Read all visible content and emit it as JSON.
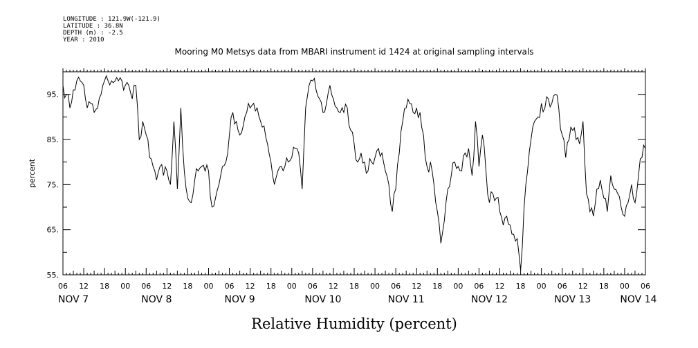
{
  "header": {
    "lines": [
      "LONGITUDE : 121.9W(-121.9)",
      "LATITUDE : 36.8N",
      "DEPTH (m) : -2.5",
      "YEAR : 2010"
    ]
  },
  "chart_data": {
    "type": "line",
    "title": "Mooring M0 Metsys data from MBARI instrument id 1424 at original sampling intervals",
    "xlabel": "Relative Humidity (percent)",
    "ylabel": "percent",
    "ylim": [
      55,
      100
    ],
    "yticks": [
      55,
      65,
      75,
      85,
      95
    ],
    "ytick_labels": [
      "55.",
      "65.",
      "75.",
      "85.",
      "95."
    ],
    "x_unit": "hours since NOV 7 00:00, 2010",
    "xlim": [
      6,
      174
    ],
    "xtick_hours": [
      6,
      12,
      18,
      24,
      30,
      36,
      42,
      48,
      54,
      60,
      66,
      72,
      78,
      84,
      90,
      96,
      102,
      108,
      114,
      120,
      126,
      132,
      138,
      144,
      150,
      156,
      162,
      168,
      174
    ],
    "xtick_labels": [
      "06",
      "12",
      "18",
      "00",
      "06",
      "12",
      "18",
      "00",
      "06",
      "12",
      "18",
      "00",
      "06",
      "12",
      "18",
      "00",
      "06",
      "12",
      "18",
      "00",
      "06",
      "12",
      "18",
      "00",
      "06",
      "12",
      "18",
      "00",
      "06"
    ],
    "day_labels": [
      {
        "text": "NOV  7",
        "hour": 9
      },
      {
        "text": "NOV  8",
        "hour": 33
      },
      {
        "text": "NOV  9",
        "hour": 57
      },
      {
        "text": "NOV 10",
        "hour": 81
      },
      {
        "text": "NOV 11",
        "hour": 105
      },
      {
        "text": "NOV 12",
        "hour": 129
      },
      {
        "text": "NOV 13",
        "hour": 153
      },
      {
        "text": "NOV 14",
        "hour": 172
      }
    ],
    "series": [
      {
        "color": "#000000",
        "x": [
          6,
          7,
          8,
          9,
          10,
          11,
          12,
          13,
          14,
          15,
          16,
          17,
          18,
          19,
          20,
          21,
          22,
          23,
          24,
          25,
          26,
          27,
          28,
          29,
          30,
          31,
          32,
          33,
          34,
          35,
          36,
          37,
          38,
          39,
          40,
          41,
          42,
          43,
          44,
          45,
          46,
          47,
          48,
          49,
          50,
          51,
          52,
          53,
          54,
          55,
          56,
          57,
          58,
          59,
          60,
          61,
          62,
          63,
          64,
          65,
          66,
          67,
          68,
          69,
          70,
          71,
          72,
          73,
          74,
          75,
          76,
          77,
          78,
          79,
          80,
          81,
          82,
          83,
          84,
          85,
          86,
          87,
          88,
          89,
          90,
          91,
          92,
          93,
          94,
          95,
          96,
          97,
          98,
          99,
          100,
          101,
          102,
          103,
          104,
          105,
          106,
          107,
          108,
          109,
          110,
          111,
          112,
          113,
          114,
          115,
          116,
          117,
          118,
          119,
          120,
          121,
          122,
          123,
          124,
          125,
          126,
          127,
          128,
          129,
          130,
          131,
          132,
          133,
          134,
          135,
          136,
          137,
          138,
          139,
          140,
          141,
          142,
          143,
          144,
          145,
          146,
          147,
          148,
          149,
          150,
          151,
          152,
          153,
          154,
          155,
          156,
          157,
          158,
          159,
          160,
          161,
          162,
          163,
          164,
          165,
          166,
          167,
          168,
          169,
          170,
          171,
          172,
          173,
          174
        ],
        "y": [
          97,
          95,
          92,
          96,
          98,
          98,
          97,
          92,
          93,
          91,
          92,
          95,
          98,
          98,
          98,
          98,
          98,
          98,
          97,
          97,
          94,
          97,
          85,
          89,
          86,
          81,
          79,
          76,
          79,
          77,
          78,
          75,
          89,
          74,
          92,
          78,
          72,
          71,
          76,
          78,
          79,
          78,
          78,
          70,
          72,
          75,
          79,
          80,
          86,
          91,
          89,
          86,
          88,
          91,
          92,
          93,
          92,
          89,
          88,
          84,
          80,
          75,
          78,
          79,
          79,
          80,
          81,
          83,
          82,
          74,
          92,
          97,
          98,
          96,
          94,
          91,
          93,
          97,
          94,
          92,
          91,
          91,
          92,
          87,
          84,
          80,
          82,
          80,
          78,
          80,
          81,
          83,
          82,
          78,
          75,
          69,
          74,
          82,
          89,
          92,
          93,
          91,
          92,
          91,
          86,
          79,
          80,
          75,
          69,
          62,
          67,
          74,
          77,
          80,
          79,
          78,
          82,
          83,
          77,
          89,
          79,
          86,
          78,
          71,
          73,
          72,
          69,
          66,
          68,
          66,
          64,
          63,
          56,
          70,
          78,
          85,
          89,
          90,
          93,
          92,
          94,
          93,
          95,
          92,
          86,
          81,
          85,
          87,
          85,
          84,
          89,
          73,
          69,
          68,
          74,
          76,
          72,
          69,
          77,
          74,
          73,
          70,
          68,
          71,
          75,
          71,
          77,
          81,
          83
        ]
      }
    ],
    "grid": false,
    "legend": "none"
  }
}
